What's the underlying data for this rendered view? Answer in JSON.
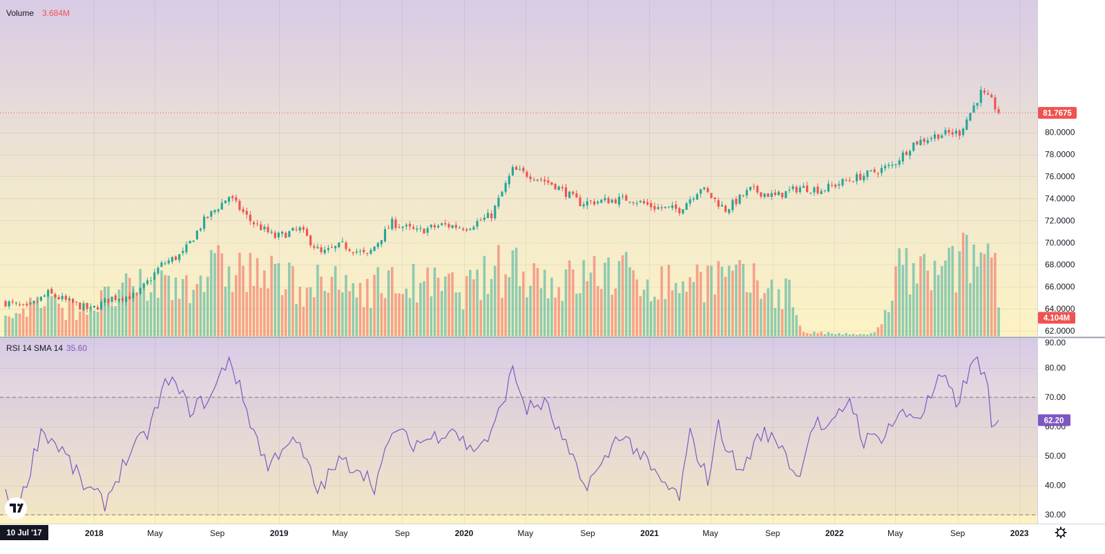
{
  "legend": {
    "volume_label": "Volume",
    "volume_value": "3.684M",
    "rsi_label": "RSI 14 SMA 14",
    "rsi_value": "35.60"
  },
  "tags": {
    "last_price": "81.7675",
    "volume_last": "4.104M",
    "rsi_last": "62.20"
  },
  "time_axis": {
    "start_badge": "10 Jul '17",
    "labels": [
      "2018",
      "May",
      "Sep",
      "2019",
      "May",
      "Sep",
      "2020",
      "May",
      "Sep",
      "2021",
      "May",
      "Sep",
      "2022",
      "May",
      "Sep",
      "2023"
    ]
  },
  "icons": [
    "tradingview-logo-icon",
    "gear-icon"
  ],
  "colors": {
    "up": "#26a69a",
    "down": "#ef5350",
    "rsi_line": "#7e57c2",
    "price_tag": "#ef5350",
    "rsi_tag": "#7e57c2"
  },
  "chart_data": [
    {
      "type": "candlestick",
      "name": "price",
      "interval": "weekly",
      "x_range": [
        "2017-07-10",
        "2022-12-26"
      ],
      "ylim": [
        61.5,
        92.0
      ],
      "y_ticks": [
        "62.0000",
        "64.0000",
        "66.0000",
        "68.0000",
        "70.0000",
        "72.0000",
        "74.0000",
        "76.0000",
        "78.0000",
        "80.0000"
      ],
      "last": 81.7675,
      "close_anchors": [
        [
          "2017-07-10",
          64.6
        ],
        [
          "2017-08-21",
          64.0
        ],
        [
          "2017-10-02",
          65.4
        ],
        [
          "2017-11-13",
          64.6
        ],
        [
          "2017-12-25",
          63.9
        ],
        [
          "2018-02-05",
          65.0
        ],
        [
          "2018-03-26",
          65.2
        ],
        [
          "2018-05-14",
          68.0
        ],
        [
          "2018-06-25",
          69.0
        ],
        [
          "2018-08-06",
          72.0
        ],
        [
          "2018-09-24",
          74.2
        ],
        [
          "2018-11-05",
          72.0
        ],
        [
          "2018-12-24",
          70.5
        ],
        [
          "2019-02-11",
          71.2
        ],
        [
          "2019-03-25",
          69.0
        ],
        [
          "2019-05-06",
          69.8
        ],
        [
          "2019-06-24",
          68.8
        ],
        [
          "2019-08-12",
          71.8
        ],
        [
          "2019-09-30",
          71.0
        ],
        [
          "2019-11-18",
          71.6
        ],
        [
          "2020-01-06",
          71.4
        ],
        [
          "2020-02-24",
          72.5
        ],
        [
          "2020-04-06",
          76.6
        ],
        [
          "2020-05-18",
          76.0
        ],
        [
          "2020-06-29",
          75.2
        ],
        [
          "2020-08-17",
          73.6
        ],
        [
          "2020-10-05",
          73.8
        ],
        [
          "2020-11-23",
          74.0
        ],
        [
          "2021-01-11",
          73.2
        ],
        [
          "2021-03-01",
          73.0
        ],
        [
          "2021-04-12",
          75.0
        ],
        [
          "2021-05-31",
          73.0
        ],
        [
          "2021-07-19",
          74.8
        ],
        [
          "2021-09-06",
          74.2
        ],
        [
          "2021-10-25",
          75.0
        ],
        [
          "2021-12-06",
          74.8
        ],
        [
          "2022-01-24",
          75.6
        ],
        [
          "2022-03-07",
          76.2
        ],
        [
          "2022-04-25",
          77.0
        ],
        [
          "2022-06-06",
          79.0
        ],
        [
          "2022-07-25",
          79.8
        ],
        [
          "2022-09-05",
          80.0
        ],
        [
          "2022-10-17",
          83.6
        ],
        [
          "2022-11-07",
          82.8
        ],
        [
          "2022-11-21",
          81.7675
        ]
      ]
    },
    {
      "type": "bar",
      "name": "Volume",
      "last": "4.104M",
      "volume_anchors": [
        [
          "2017-07-10",
          0.9
        ],
        [
          "2017-09-11",
          1.7
        ],
        [
          "2017-12-04",
          1.3
        ],
        [
          "2018-03-05",
          2.2
        ],
        [
          "2018-07-02",
          2.8
        ],
        [
          "2018-10-01",
          3.4
        ],
        [
          "2019-01-07",
          2.7
        ],
        [
          "2019-05-06",
          2.4
        ],
        [
          "2019-09-02",
          2.6
        ],
        [
          "2020-01-06",
          2.3
        ],
        [
          "2020-04-06",
          3.6
        ],
        [
          "2020-07-06",
          2.6
        ],
        [
          "2020-10-05",
          3.2
        ],
        [
          "2021-02-01",
          2.6
        ],
        [
          "2021-05-03",
          3.0
        ],
        [
          "2021-08-02",
          2.5
        ],
        [
          "2021-10-04",
          2.2
        ],
        [
          "2021-11-01",
          0.2
        ],
        [
          "2022-03-07",
          0.08
        ],
        [
          "2022-04-04",
          0.5
        ],
        [
          "2022-05-09",
          3.2
        ],
        [
          "2022-08-01",
          3.0
        ],
        [
          "2022-10-03",
          4.0
        ],
        [
          "2022-11-21",
          4.104
        ]
      ]
    },
    {
      "type": "line",
      "name": "RSI 14 SMA 14",
      "ylim": [
        27.0,
        90.0
      ],
      "y_ticks": [
        "30.00",
        "40.00",
        "50.00",
        "60.00",
        "70.00",
        "80.00",
        "90.00"
      ],
      "bands": [
        30,
        70
      ],
      "last": 62.2,
      "rsi_anchors": [
        [
          "2017-07-10",
          36
        ],
        [
          "2017-08-07",
          33
        ],
        [
          "2017-09-18",
          59
        ],
        [
          "2017-10-30",
          52
        ],
        [
          "2017-12-11",
          40
        ],
        [
          "2018-01-22",
          34
        ],
        [
          "2018-03-05",
          49
        ],
        [
          "2018-04-16",
          58
        ],
        [
          "2018-05-28",
          77
        ],
        [
          "2018-07-09",
          66
        ],
        [
          "2018-08-20",
          70
        ],
        [
          "2018-09-24",
          84
        ],
        [
          "2018-11-05",
          62
        ],
        [
          "2018-12-10",
          46
        ],
        [
          "2019-01-14",
          55
        ],
        [
          "2019-02-11",
          53
        ],
        [
          "2019-03-18",
          38
        ],
        [
          "2019-04-29",
          48
        ],
        [
          "2019-06-10",
          46
        ],
        [
          "2019-07-08",
          40
        ],
        [
          "2019-08-19",
          60
        ],
        [
          "2019-09-16",
          54
        ],
        [
          "2019-10-28",
          56
        ],
        [
          "2019-12-09",
          60
        ],
        [
          "2020-01-13",
          52
        ],
        [
          "2020-02-24",
          57
        ],
        [
          "2020-04-06",
          79
        ],
        [
          "2020-05-04",
          66
        ],
        [
          "2020-06-08",
          68
        ],
        [
          "2020-07-20",
          53
        ],
        [
          "2020-08-24",
          40
        ],
        [
          "2020-09-28",
          46
        ],
        [
          "2020-11-02",
          58
        ],
        [
          "2020-12-07",
          52
        ],
        [
          "2021-01-18",
          42
        ],
        [
          "2021-03-01",
          36
        ],
        [
          "2021-03-22",
          57
        ],
        [
          "2021-04-26",
          42
        ],
        [
          "2021-05-17",
          60
        ],
        [
          "2021-06-28",
          44
        ],
        [
          "2021-08-09",
          58
        ],
        [
          "2021-09-20",
          54
        ],
        [
          "2021-10-18",
          42
        ],
        [
          "2021-11-22",
          62
        ],
        [
          "2021-12-20",
          58
        ],
        [
          "2022-01-31",
          70
        ],
        [
          "2022-02-28",
          55
        ],
        [
          "2022-04-04",
          57
        ],
        [
          "2022-05-09",
          64
        ],
        [
          "2022-06-20",
          64
        ],
        [
          "2022-08-01",
          77
        ],
        [
          "2022-08-29",
          68
        ],
        [
          "2022-10-10",
          84
        ],
        [
          "2022-10-31",
          73
        ],
        [
          "2022-11-07",
          57
        ],
        [
          "2022-11-21",
          62.2
        ]
      ]
    }
  ]
}
